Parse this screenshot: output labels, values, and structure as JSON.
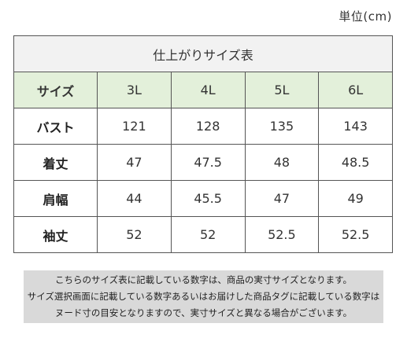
{
  "unit_label": "単位(cm)",
  "table": {
    "title": "仕上がりサイズ表",
    "header_label": "サイズ",
    "sizes": [
      "3L",
      "4L",
      "5L",
      "6L"
    ],
    "rows": [
      {
        "label": "バスト",
        "values": [
          "121",
          "128",
          "135",
          "143"
        ]
      },
      {
        "label": "着丈",
        "values": [
          "47",
          "47.5",
          "48",
          "48.5"
        ]
      },
      {
        "label": "肩幅",
        "values": [
          "44",
          "45.5",
          "47",
          "49"
        ]
      },
      {
        "label": "袖丈",
        "values": [
          "52",
          "52",
          "52.5",
          "52.5"
        ]
      }
    ]
  },
  "note": {
    "lines": [
      "こちらのサイズ表に記載している数字は、商品の実寸サイズとなります。",
      "サイズ選択画面に記載している数字あるいはお届けした商品タグに記載している数字は",
      "ヌード寸の目安となりますので、実寸サイズと異なる場合がございます。"
    ]
  },
  "colors": {
    "title_bg": "#f2f2f2",
    "header_bg": "#e3f0da",
    "note_bg": "#d9d9d9",
    "border": "#555555"
  }
}
